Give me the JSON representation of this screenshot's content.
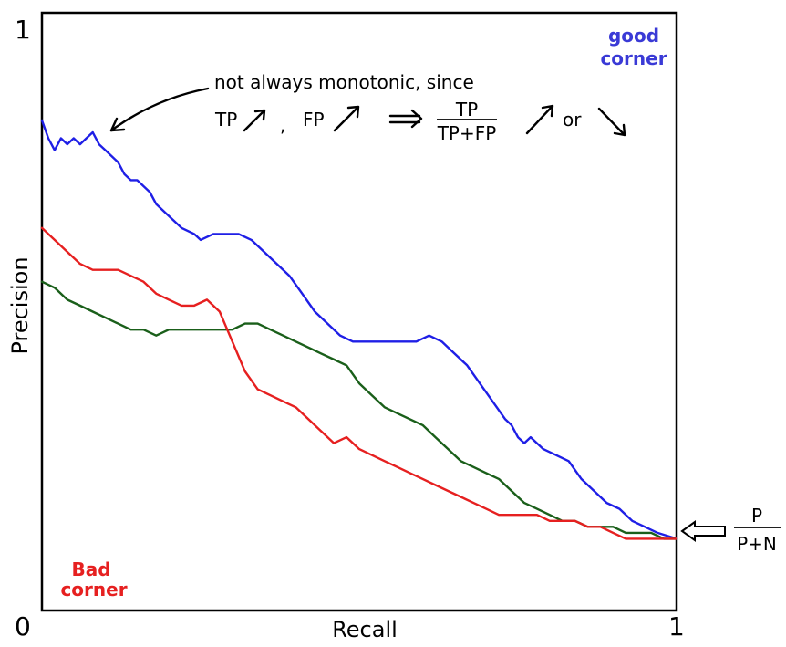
{
  "chart_data": {
    "type": "line",
    "title": "",
    "xlabel": "Recall",
    "ylabel": "Precision",
    "xlim": [
      0,
      1
    ],
    "ylim": [
      0,
      1
    ],
    "x_ticks": [
      "0",
      "1"
    ],
    "y_ticks": [
      "0",
      "1"
    ],
    "grid": false,
    "series": [
      {
        "color": "#1f1fe6",
        "points": [
          [
            0.0,
            0.82
          ],
          [
            0.01,
            0.79
          ],
          [
            0.02,
            0.77
          ],
          [
            0.03,
            0.79
          ],
          [
            0.04,
            0.78
          ],
          [
            0.05,
            0.79
          ],
          [
            0.06,
            0.78
          ],
          [
            0.07,
            0.79
          ],
          [
            0.08,
            0.8
          ],
          [
            0.09,
            0.78
          ],
          [
            0.1,
            0.77
          ],
          [
            0.11,
            0.76
          ],
          [
            0.12,
            0.75
          ],
          [
            0.13,
            0.73
          ],
          [
            0.14,
            0.72
          ],
          [
            0.15,
            0.72
          ],
          [
            0.16,
            0.71
          ],
          [
            0.17,
            0.7
          ],
          [
            0.18,
            0.68
          ],
          [
            0.2,
            0.66
          ],
          [
            0.22,
            0.64
          ],
          [
            0.24,
            0.63
          ],
          [
            0.25,
            0.62
          ],
          [
            0.27,
            0.63
          ],
          [
            0.29,
            0.63
          ],
          [
            0.31,
            0.63
          ],
          [
            0.33,
            0.62
          ],
          [
            0.35,
            0.6
          ],
          [
            0.37,
            0.58
          ],
          [
            0.39,
            0.56
          ],
          [
            0.41,
            0.53
          ],
          [
            0.43,
            0.5
          ],
          [
            0.45,
            0.48
          ],
          [
            0.47,
            0.46
          ],
          [
            0.49,
            0.45
          ],
          [
            0.51,
            0.45
          ],
          [
            0.53,
            0.45
          ],
          [
            0.55,
            0.45
          ],
          [
            0.57,
            0.45
          ],
          [
            0.59,
            0.45
          ],
          [
            0.61,
            0.46
          ],
          [
            0.63,
            0.45
          ],
          [
            0.65,
            0.43
          ],
          [
            0.67,
            0.41
          ],
          [
            0.69,
            0.38
          ],
          [
            0.71,
            0.35
          ],
          [
            0.73,
            0.32
          ],
          [
            0.74,
            0.31
          ],
          [
            0.75,
            0.29
          ],
          [
            0.76,
            0.28
          ],
          [
            0.77,
            0.29
          ],
          [
            0.79,
            0.27
          ],
          [
            0.81,
            0.26
          ],
          [
            0.83,
            0.25
          ],
          [
            0.85,
            0.22
          ],
          [
            0.87,
            0.2
          ],
          [
            0.89,
            0.18
          ],
          [
            0.91,
            0.17
          ],
          [
            0.93,
            0.15
          ],
          [
            0.95,
            0.14
          ],
          [
            0.97,
            0.13
          ],
          [
            1.0,
            0.12
          ]
        ]
      },
      {
        "color": "#1a5f1a",
        "points": [
          [
            0.0,
            0.55
          ],
          [
            0.02,
            0.54
          ],
          [
            0.04,
            0.52
          ],
          [
            0.06,
            0.51
          ],
          [
            0.08,
            0.5
          ],
          [
            0.1,
            0.49
          ],
          [
            0.12,
            0.48
          ],
          [
            0.14,
            0.47
          ],
          [
            0.16,
            0.47
          ],
          [
            0.18,
            0.46
          ],
          [
            0.2,
            0.47
          ],
          [
            0.22,
            0.47
          ],
          [
            0.24,
            0.47
          ],
          [
            0.26,
            0.47
          ],
          [
            0.28,
            0.47
          ],
          [
            0.3,
            0.47
          ],
          [
            0.32,
            0.48
          ],
          [
            0.34,
            0.48
          ],
          [
            0.36,
            0.47
          ],
          [
            0.38,
            0.46
          ],
          [
            0.4,
            0.45
          ],
          [
            0.42,
            0.44
          ],
          [
            0.44,
            0.43
          ],
          [
            0.46,
            0.42
          ],
          [
            0.48,
            0.41
          ],
          [
            0.5,
            0.38
          ],
          [
            0.52,
            0.36
          ],
          [
            0.54,
            0.34
          ],
          [
            0.56,
            0.33
          ],
          [
            0.58,
            0.32
          ],
          [
            0.6,
            0.31
          ],
          [
            0.62,
            0.29
          ],
          [
            0.64,
            0.27
          ],
          [
            0.66,
            0.25
          ],
          [
            0.68,
            0.24
          ],
          [
            0.7,
            0.23
          ],
          [
            0.72,
            0.22
          ],
          [
            0.74,
            0.2
          ],
          [
            0.76,
            0.18
          ],
          [
            0.78,
            0.17
          ],
          [
            0.8,
            0.16
          ],
          [
            0.82,
            0.15
          ],
          [
            0.84,
            0.15
          ],
          [
            0.86,
            0.14
          ],
          [
            0.88,
            0.14
          ],
          [
            0.9,
            0.14
          ],
          [
            0.92,
            0.13
          ],
          [
            0.94,
            0.13
          ],
          [
            0.96,
            0.13
          ],
          [
            0.98,
            0.12
          ],
          [
            1.0,
            0.12
          ]
        ]
      },
      {
        "color": "#e62020",
        "points": [
          [
            0.0,
            0.64
          ],
          [
            0.02,
            0.62
          ],
          [
            0.04,
            0.6
          ],
          [
            0.06,
            0.58
          ],
          [
            0.08,
            0.57
          ],
          [
            0.1,
            0.57
          ],
          [
            0.12,
            0.57
          ],
          [
            0.14,
            0.56
          ],
          [
            0.16,
            0.55
          ],
          [
            0.18,
            0.53
          ],
          [
            0.2,
            0.52
          ],
          [
            0.22,
            0.51
          ],
          [
            0.24,
            0.51
          ],
          [
            0.26,
            0.52
          ],
          [
            0.28,
            0.5
          ],
          [
            0.3,
            0.45
          ],
          [
            0.32,
            0.4
          ],
          [
            0.34,
            0.37
          ],
          [
            0.36,
            0.36
          ],
          [
            0.38,
            0.35
          ],
          [
            0.4,
            0.34
          ],
          [
            0.42,
            0.32
          ],
          [
            0.44,
            0.3
          ],
          [
            0.46,
            0.28
          ],
          [
            0.48,
            0.29
          ],
          [
            0.5,
            0.27
          ],
          [
            0.52,
            0.26
          ],
          [
            0.54,
            0.25
          ],
          [
            0.56,
            0.24
          ],
          [
            0.58,
            0.23
          ],
          [
            0.6,
            0.22
          ],
          [
            0.62,
            0.21
          ],
          [
            0.64,
            0.2
          ],
          [
            0.66,
            0.19
          ],
          [
            0.68,
            0.18
          ],
          [
            0.7,
            0.17
          ],
          [
            0.72,
            0.16
          ],
          [
            0.74,
            0.16
          ],
          [
            0.76,
            0.16
          ],
          [
            0.78,
            0.16
          ],
          [
            0.8,
            0.15
          ],
          [
            0.82,
            0.15
          ],
          [
            0.84,
            0.15
          ],
          [
            0.86,
            0.14
          ],
          [
            0.88,
            0.14
          ],
          [
            0.9,
            0.13
          ],
          [
            0.92,
            0.12
          ],
          [
            0.94,
            0.12
          ],
          [
            0.96,
            0.12
          ],
          [
            0.98,
            0.12
          ],
          [
            1.0,
            0.12
          ]
        ]
      }
    ],
    "annotations": {
      "note_line1": "not always monotonic, since",
      "tp": "TP",
      "comma": ",",
      "fp": "FP",
      "frac_num": "TP",
      "frac_den": "TP+FP",
      "or": "or",
      "good_corner_line1": "good",
      "good_corner_line2": "corner",
      "bad_corner_line1": "Bad",
      "bad_corner_line2": "corner",
      "baseline_num": "P",
      "baseline_den": "P+N"
    },
    "colors": {
      "good_corner": "#3a3ad6",
      "bad_corner": "#e62020"
    }
  }
}
